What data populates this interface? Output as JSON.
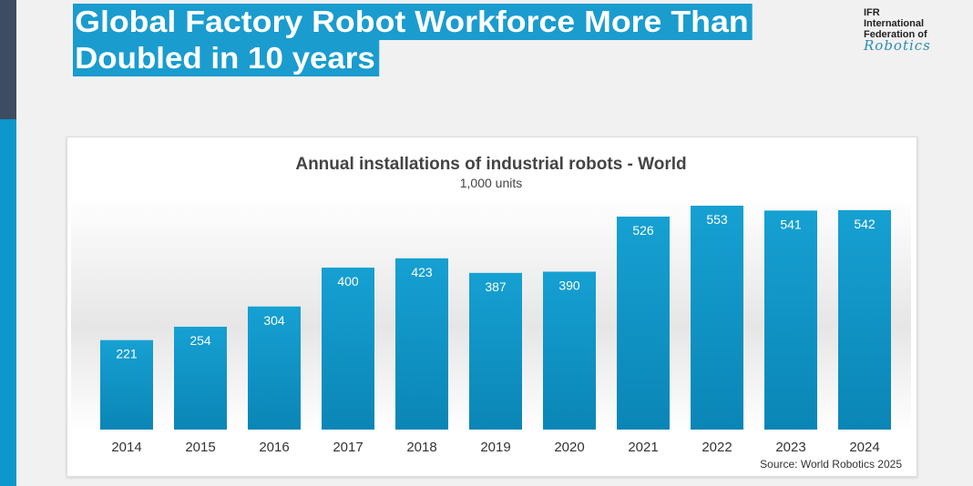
{
  "header": {
    "title_line1": "Global Factory Robot Workforce More Than",
    "title_line2": "Doubled in 10 years"
  },
  "logo": {
    "line1": "IFR",
    "line2": "International",
    "line3": "Federation of",
    "line4": "Robotics"
  },
  "colors": {
    "bar": "#0e98cc",
    "title_bg": "#1a9ccf"
  },
  "chart_data": {
    "type": "bar",
    "title": "Annual installations of industrial robots - World",
    "subtitle": "1,000 units",
    "categories": [
      "2014",
      "2015",
      "2016",
      "2017",
      "2018",
      "2019",
      "2020",
      "2021",
      "2022",
      "2023",
      "2024"
    ],
    "values": [
      221,
      254,
      304,
      400,
      423,
      387,
      390,
      526,
      553,
      541,
      542
    ],
    "ylim": [
      0,
      553
    ],
    "grid": false,
    "source": "Source: World Robotics 2025"
  }
}
